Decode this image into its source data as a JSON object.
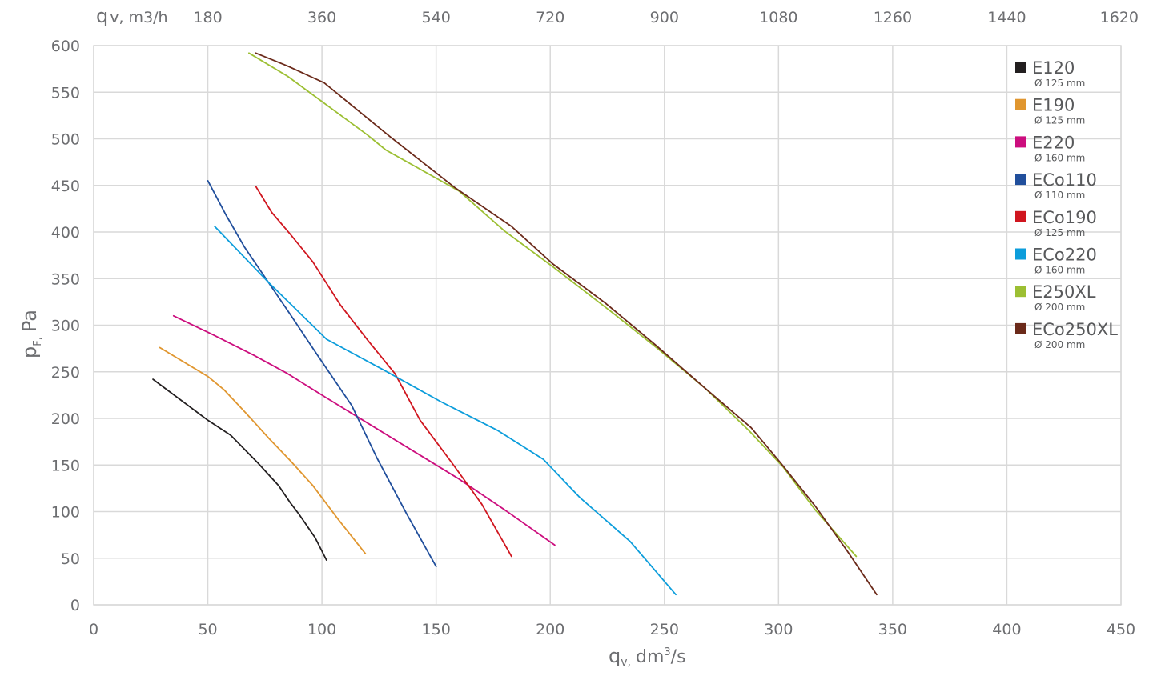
{
  "chart_data": {
    "type": "line",
    "title": "",
    "xlabel": "q",
    "xlabel_sub": "v,",
    "xlabel_unit": "dm",
    "xlabel_unit_sup": "3",
    "xlabel_unit_tail": "/s",
    "ylabel": "p",
    "ylabel_sub": "F,",
    "ylabel_unit": "Pa",
    "top_axis_label": "q",
    "top_axis_sub": "v, m3/h",
    "xlim": [
      0,
      450
    ],
    "ylim": [
      0,
      600
    ],
    "x_ticks": [
      0,
      50,
      100,
      150,
      200,
      250,
      300,
      350,
      400,
      450
    ],
    "y_ticks": [
      0,
      50,
      100,
      150,
      200,
      250,
      300,
      350,
      400,
      450,
      500,
      550,
      600
    ],
    "top_ticks": [
      {
        "label": "180",
        "x": 50
      },
      {
        "label": "360",
        "x": 100
      },
      {
        "label": "540",
        "x": 150
      },
      {
        "label": "720",
        "x": 200
      },
      {
        "label": "900",
        "x": 250
      },
      {
        "label": "1080",
        "x": 300
      },
      {
        "label": "1260",
        "x": 350
      },
      {
        "label": "1440",
        "x": 400
      },
      {
        "label": "1620",
        "x": 450
      }
    ],
    "grid": true,
    "legend_position": "right",
    "series": [
      {
        "name": "E120",
        "sub": "Ø 125 mm",
        "color": "#231f20",
        "points": [
          [
            26,
            242
          ],
          [
            50,
            198
          ],
          [
            60,
            182
          ],
          [
            72,
            152
          ],
          [
            81,
            128
          ],
          [
            86,
            110
          ],
          [
            90,
            97
          ],
          [
            97,
            72
          ],
          [
            102,
            48
          ]
        ]
      },
      {
        "name": "E190",
        "sub": "Ø 125 mm",
        "color": "#e0962f",
        "points": [
          [
            29,
            276
          ],
          [
            50,
            245
          ],
          [
            57,
            231
          ],
          [
            67,
            205
          ],
          [
            77,
            178
          ],
          [
            86,
            155
          ],
          [
            96,
            128
          ],
          [
            107,
            92
          ],
          [
            119,
            55
          ]
        ]
      },
      {
        "name": "E220",
        "sub": "Ø 160 mm",
        "color": "#cc0e7e",
        "points": [
          [
            35,
            310
          ],
          [
            52,
            290
          ],
          [
            70,
            268
          ],
          [
            85,
            248
          ],
          [
            102,
            222
          ],
          [
            120,
            195
          ],
          [
            140,
            165
          ],
          [
            160,
            135
          ],
          [
            180,
            102
          ],
          [
            202,
            64
          ]
        ]
      },
      {
        "name": "ECo110",
        "sub": "Ø 110 mm",
        "color": "#214f9c",
        "points": [
          [
            50,
            455
          ],
          [
            58,
            418
          ],
          [
            66,
            384
          ],
          [
            76,
            348
          ],
          [
            86,
            312
          ],
          [
            98,
            268
          ],
          [
            113,
            214
          ],
          [
            124,
            158
          ],
          [
            137,
            98
          ],
          [
            150,
            41
          ]
        ]
      },
      {
        "name": "ECo190",
        "sub": "Ø 125 mm",
        "color": "#d0161f",
        "points": [
          [
            71,
            449
          ],
          [
            78,
            421
          ],
          [
            86,
            398
          ],
          [
            96,
            368
          ],
          [
            108,
            322
          ],
          [
            120,
            284
          ],
          [
            132,
            248
          ],
          [
            143,
            198
          ],
          [
            157,
            152
          ],
          [
            170,
            108
          ],
          [
            183,
            52
          ]
        ]
      },
      {
        "name": "ECo220",
        "sub": "Ø 160 mm",
        "color": "#0c9ddb",
        "points": [
          [
            53,
            406
          ],
          [
            77,
            345
          ],
          [
            102,
            285
          ],
          [
            127,
            252
          ],
          [
            152,
            218
          ],
          [
            177,
            187
          ],
          [
            197,
            156
          ],
          [
            213,
            115
          ],
          [
            235,
            68
          ],
          [
            255,
            11
          ]
        ]
      },
      {
        "name": "E250XL",
        "sub": "Ø 200 mm",
        "color": "#9cbf33",
        "points": [
          [
            68,
            592
          ],
          [
            85,
            567
          ],
          [
            100,
            540
          ],
          [
            120,
            504
          ],
          [
            128,
            488
          ],
          [
            160,
            444
          ],
          [
            180,
            401
          ],
          [
            201,
            363
          ],
          [
            228,
            312
          ],
          [
            247,
            275
          ],
          [
            268,
            232
          ],
          [
            287,
            187
          ],
          [
            302,
            148
          ],
          [
            316,
            102
          ],
          [
            334,
            52
          ]
        ]
      },
      {
        "name": "ECo250XL",
        "sub": "Ø 200 mm",
        "color": "#6b2a1a",
        "points": [
          [
            71,
            592
          ],
          [
            85,
            578
          ],
          [
            101,
            560
          ],
          [
            130,
            502
          ],
          [
            158,
            448
          ],
          [
            183,
            406
          ],
          [
            201,
            366
          ],
          [
            224,
            324
          ],
          [
            246,
            279
          ],
          [
            268,
            232
          ],
          [
            288,
            190
          ],
          [
            301,
            152
          ],
          [
            316,
            106
          ],
          [
            330,
            58
          ],
          [
            343,
            11
          ]
        ]
      }
    ]
  }
}
